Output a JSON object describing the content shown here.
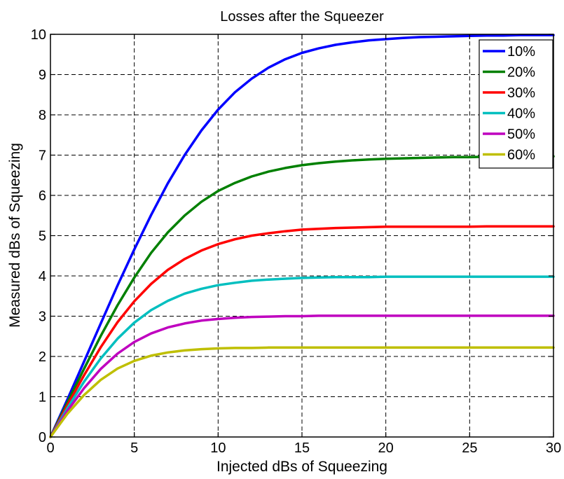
{
  "chart_data": {
    "type": "line",
    "title": "Losses after the Squeezer",
    "xlabel": "Injected dBs of Squeezing",
    "ylabel": "Measured dBs of Squeezing",
    "xlim": [
      0,
      30
    ],
    "ylim": [
      0,
      10
    ],
    "xticks": [
      0,
      5,
      10,
      15,
      20,
      25,
      30
    ],
    "yticks": [
      0,
      1,
      2,
      3,
      4,
      5,
      6,
      7,
      8,
      9,
      10
    ],
    "grid": true,
    "legend_position": "top-right",
    "x": [
      0,
      1,
      2,
      3,
      4,
      5,
      6,
      7,
      8,
      9,
      10,
      11,
      12,
      13,
      14,
      15,
      16,
      17,
      18,
      19,
      20,
      21,
      22,
      23,
      24,
      25,
      26,
      27,
      28,
      29,
      30
    ],
    "series": [
      {
        "name": "10%",
        "color": "#0000ff",
        "values": [
          0,
          0.92,
          1.87,
          2.82,
          3.76,
          4.66,
          5.51,
          6.3,
          7.0,
          7.61,
          8.13,
          8.56,
          8.9,
          9.17,
          9.38,
          9.54,
          9.65,
          9.74,
          9.8,
          9.85,
          9.88,
          9.91,
          9.93,
          9.94,
          9.95,
          9.96,
          9.97,
          9.97,
          9.98,
          9.98,
          9.98
        ]
      },
      {
        "name": "20%",
        "color": "#008000",
        "values": [
          0,
          0.85,
          1.69,
          2.51,
          3.27,
          3.96,
          4.57,
          5.08,
          5.5,
          5.84,
          6.11,
          6.31,
          6.47,
          6.59,
          6.68,
          6.75,
          6.8,
          6.84,
          6.87,
          6.89,
          6.91,
          6.92,
          6.93,
          6.94,
          6.95,
          6.95,
          6.96,
          6.96,
          6.96,
          6.97,
          6.97
        ]
      },
      {
        "name": "30%",
        "color": "#ff0000",
        "values": [
          0,
          0.78,
          1.53,
          2.23,
          2.85,
          3.37,
          3.8,
          4.15,
          4.42,
          4.63,
          4.79,
          4.91,
          5.0,
          5.06,
          5.11,
          5.15,
          5.17,
          5.19,
          5.2,
          5.21,
          5.22,
          5.22,
          5.22,
          5.22,
          5.22,
          5.22,
          5.23,
          5.23,
          5.23,
          5.23,
          5.23
        ]
      },
      {
        "name": "40%",
        "color": "#00bfbf",
        "values": [
          0,
          0.71,
          1.37,
          1.95,
          2.44,
          2.84,
          3.15,
          3.38,
          3.56,
          3.68,
          3.77,
          3.83,
          3.88,
          3.91,
          3.93,
          3.95,
          3.96,
          3.97,
          3.97,
          3.97,
          3.98,
          3.98,
          3.98,
          3.98,
          3.98,
          3.98,
          3.98,
          3.98,
          3.98,
          3.98,
          3.98
        ]
      },
      {
        "name": "50%",
        "color": "#bf00bf",
        "values": [
          0,
          0.64,
          1.21,
          1.69,
          2.07,
          2.36,
          2.57,
          2.72,
          2.82,
          2.89,
          2.93,
          2.96,
          2.98,
          2.99,
          3.0,
          3.0,
          3.01,
          3.01,
          3.01,
          3.01,
          3.01,
          3.01,
          3.01,
          3.01,
          3.01,
          3.01,
          3.01,
          3.01,
          3.01,
          3.01,
          3.01
        ]
      },
      {
        "name": "60%",
        "color": "#bfbf00",
        "values": [
          0,
          0.57,
          1.04,
          1.42,
          1.7,
          1.89,
          2.02,
          2.1,
          2.15,
          2.18,
          2.2,
          2.21,
          2.21,
          2.22,
          2.22,
          2.22,
          2.22,
          2.22,
          2.22,
          2.22,
          2.22,
          2.22,
          2.22,
          2.22,
          2.22,
          2.22,
          2.22,
          2.22,
          2.22,
          2.22,
          2.22
        ]
      }
    ]
  }
}
